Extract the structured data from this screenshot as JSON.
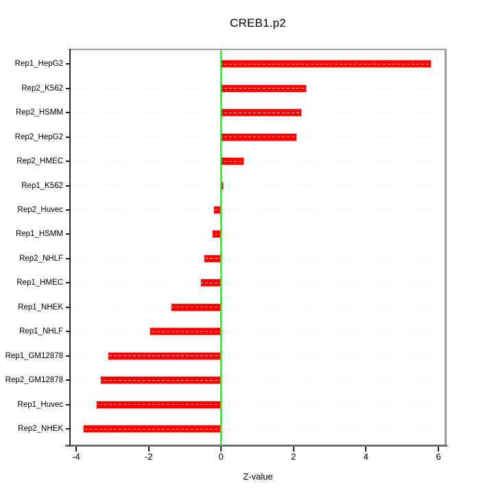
{
  "figure": {
    "title": "CREB1.p2",
    "xlabel": "Z-value"
  },
  "chart_data": {
    "type": "bar",
    "orientation": "horizontal",
    "title": "CREB1.p2",
    "xlabel": "Z-value",
    "ylabel": "",
    "categories": [
      "Rep1_HepG2",
      "Rep2_K562",
      "Rep2_HSMM",
      "Rep2_HepG2",
      "Rep2_HMEC",
      "Rep1_K562",
      "Rep2_Huvec",
      "Rep1_HSMM",
      "Rep2_NHLF",
      "Rep1_HMEC",
      "Rep1_NHEK",
      "Rep1_NHLF",
      "Rep1_GM12878",
      "Rep2_GM12878",
      "Rep1_Huvec",
      "Rep2_NHEK"
    ],
    "values": [
      5.79,
      2.35,
      2.21,
      2.09,
      0.63,
      0.05,
      -0.19,
      -0.23,
      -0.45,
      -0.56,
      -1.37,
      -1.95,
      -3.1,
      -3.32,
      -3.43,
      -3.79
    ],
    "xticks": [
      -4,
      -2,
      0,
      2,
      4,
      6
    ],
    "xlim": [
      -4.15,
      6.19
    ],
    "grid": "dashed horizontal gridline per category, drawn across plot and over bars",
    "legend": "none",
    "zero_reference_line": 0,
    "colors": {
      "bar": "#ff0000",
      "bar_edge": "#ff8080",
      "zero_line": "#00ff00",
      "gridline": "#dcdcdc",
      "box": "#9b9b9b",
      "axis": "#1a1a1a",
      "text": "#000000",
      "background": "#ffffff"
    }
  }
}
